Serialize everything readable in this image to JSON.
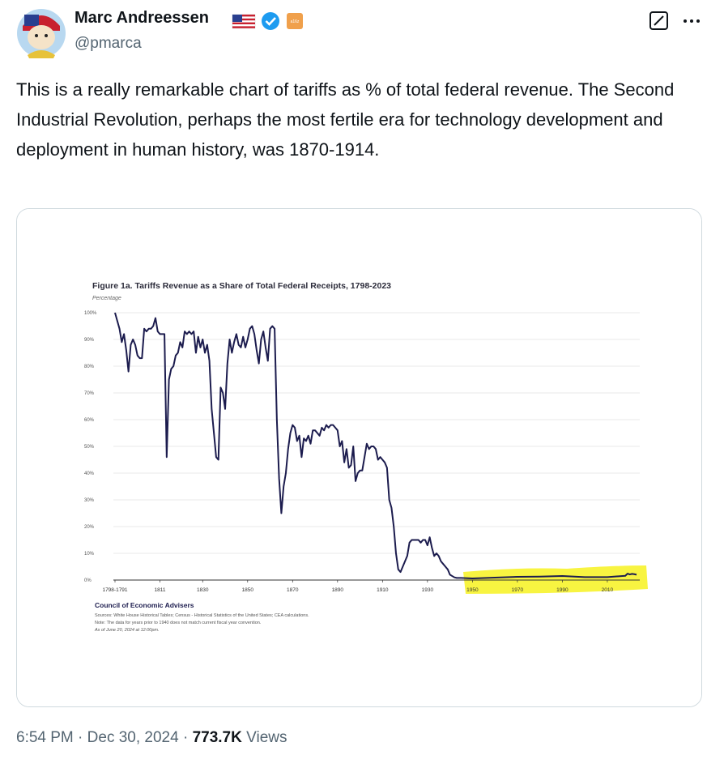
{
  "tweet": {
    "author": {
      "name": "Marc Andreessen",
      "handle": "@pmarca",
      "affiliate_badge": "a16z"
    },
    "text": "This is a really remarkable chart of tariffs as % of total federal revenue. The Second Industrial Revolution, perhaps the most fertile era for technology development and deployment in human history, was 1870-1914.",
    "footer": {
      "time": "6:54 PM",
      "separator": "·",
      "date": "Dec 30, 2024",
      "views": "773.7K",
      "views_label": "Views"
    }
  },
  "chart_data": {
    "type": "line",
    "title": "Figure 1a. Tariffs Revenue as a Share of Total Federal Receipts, 1798-2023",
    "y_label": "Percentage",
    "source_org": "Council of Economic Advisers",
    "notes": [
      "Sources: White House Historical Tables; Census - Historical Statistics of the United States; CEA calculations.",
      "Note: The data for years prior to 1940 does not match current fiscal year convention.",
      "As of June 20, 2024 at 12:00pm."
    ],
    "color": "#1c1c4e",
    "grid": true,
    "xlim": [
      1791,
      2023
    ],
    "xticks": [
      {
        "value": 1791,
        "label": "1798-1791"
      },
      1811,
      1830,
      1850,
      1870,
      1890,
      1910,
      1930,
      1950,
      1970,
      1990,
      2010
    ],
    "ylim": [
      0,
      100
    ],
    "yticks": [
      {
        "value": 0,
        "label": "0%"
      },
      {
        "value": 10,
        "label": "10%"
      },
      {
        "value": 20,
        "label": "20%"
      },
      {
        "value": 30,
        "label": "30%"
      },
      {
        "value": 40,
        "label": "40%"
      },
      {
        "value": 50,
        "label": "50%"
      },
      {
        "value": 60,
        "label": "60%"
      },
      {
        "value": 70,
        "label": "70%"
      },
      {
        "value": 80,
        "label": "80%"
      },
      {
        "value": 90,
        "label": "90%"
      },
      {
        "value": 100,
        "label": "100%"
      }
    ],
    "x": [
      1791,
      1793,
      1794,
      1795,
      1796,
      1797,
      1798,
      1799,
      1800,
      1801,
      1802,
      1803,
      1804,
      1805,
      1806,
      1807,
      1808,
      1809,
      1810,
      1811,
      1812,
      1813,
      1814,
      1815,
      1816,
      1817,
      1818,
      1819,
      1820,
      1821,
      1822,
      1823,
      1824,
      1825,
      1826,
      1827,
      1828,
      1829,
      1830,
      1831,
      1832,
      1833,
      1834,
      1835,
      1836,
      1837,
      1838,
      1839,
      1840,
      1841,
      1842,
      1843,
      1844,
      1845,
      1846,
      1847,
      1848,
      1849,
      1850,
      1851,
      1852,
      1853,
      1854,
      1855,
      1856,
      1857,
      1858,
      1859,
      1860,
      1861,
      1862,
      1863,
      1864,
      1865,
      1866,
      1867,
      1868,
      1869,
      1870,
      1871,
      1872,
      1873,
      1874,
      1875,
      1876,
      1877,
      1878,
      1879,
      1880,
      1881,
      1882,
      1883,
      1884,
      1885,
      1886,
      1887,
      1888,
      1889,
      1890,
      1891,
      1892,
      1893,
      1894,
      1895,
      1896,
      1897,
      1898,
      1899,
      1900,
      1901,
      1902,
      1903,
      1904,
      1905,
      1906,
      1907,
      1908,
      1909,
      1910,
      1911,
      1912,
      1913,
      1914,
      1915,
      1916,
      1917,
      1918,
      1919,
      1920,
      1921,
      1922,
      1923,
      1924,
      1925,
      1926,
      1927,
      1928,
      1929,
      1930,
      1931,
      1932,
      1933,
      1934,
      1935,
      1936,
      1937,
      1938,
      1939,
      1940,
      1941,
      1942,
      1943,
      1945,
      1950,
      1960,
      1970,
      1980,
      1990,
      2000,
      2010,
      2018,
      2019,
      2020,
      2021,
      2022,
      2023
    ],
    "values": [
      100,
      94,
      89,
      92,
      86,
      78,
      88,
      90,
      88,
      84,
      83,
      83,
      94,
      93,
      94,
      94,
      95,
      98,
      93,
      92,
      92,
      92,
      46,
      75,
      79,
      80,
      84,
      85,
      89,
      87,
      93,
      92,
      93,
      92,
      93,
      85,
      91,
      87,
      90,
      85,
      88,
      82,
      64,
      55,
      46,
      45,
      72,
      70,
      64,
      81,
      90,
      85,
      89,
      92,
      88,
      87,
      91,
      87,
      90,
      94,
      95,
      92,
      86,
      81,
      90,
      93,
      87,
      82,
      94,
      95,
      94,
      60,
      38,
      25,
      35,
      40,
      49,
      55,
      58,
      57,
      52,
      54,
      46,
      53,
      52,
      54,
      51,
      56,
      56,
      55,
      54,
      57,
      56,
      58,
      57,
      58,
      58,
      57,
      56,
      50,
      52,
      44,
      49,
      42,
      43,
      50,
      37,
      40,
      41,
      41,
      46,
      51,
      49,
      50,
      50,
      49,
      45,
      46,
      45,
      44,
      42,
      30,
      27,
      20,
      10,
      4,
      3,
      5,
      7,
      9,
      14,
      15,
      15,
      15,
      15,
      14,
      15,
      15,
      13,
      16,
      12,
      9,
      10,
      9,
      7,
      6,
      5,
      4,
      2,
      1.5,
      1,
      0.8,
      0.8,
      0.6,
      0.9,
      1.2,
      1.3,
      1.5,
      1.1,
      1.1,
      1.6,
      2.4,
      2.1,
      2.3,
      2.2,
      2.0
    ]
  }
}
